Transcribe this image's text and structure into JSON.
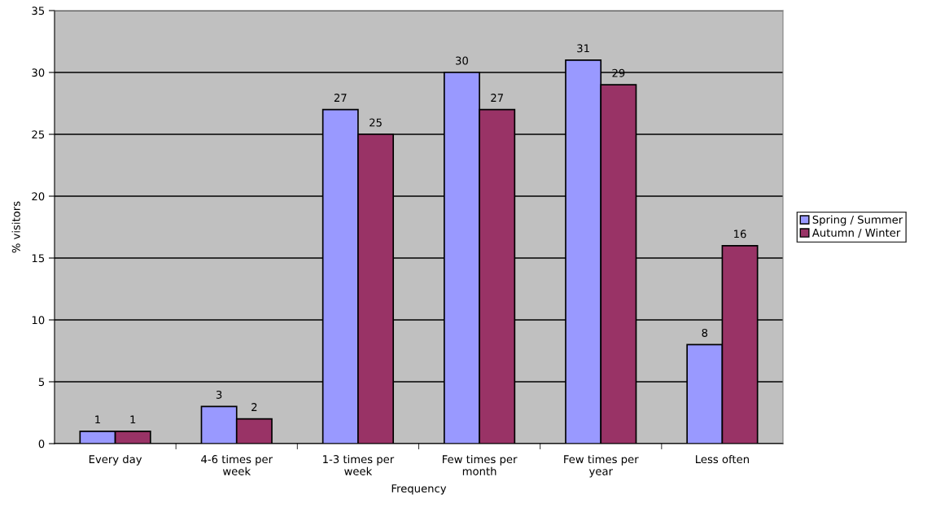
{
  "chart_data": {
    "type": "bar",
    "categories": [
      "Every day",
      "4-6 times per\nweek",
      "1-3 times per\nweek",
      "Few times per\nmonth",
      "Few times per\nyear",
      "Less often"
    ],
    "series": [
      {
        "name": "Spring / Summer",
        "color": "#9999ff",
        "values": [
          1,
          3,
          27,
          30,
          31,
          8
        ]
      },
      {
        "name": "Autumn / Winter",
        "color": "#993366",
        "values": [
          1,
          2,
          25,
          27,
          29,
          16
        ]
      }
    ],
    "xlabel": "Frequency",
    "ylabel": "% visitors",
    "ylim": [
      0,
      35
    ],
    "yticks": [
      0,
      5,
      10,
      15,
      20,
      25,
      30,
      35
    ],
    "grid": "y",
    "legend": "right",
    "data_labels": true
  }
}
